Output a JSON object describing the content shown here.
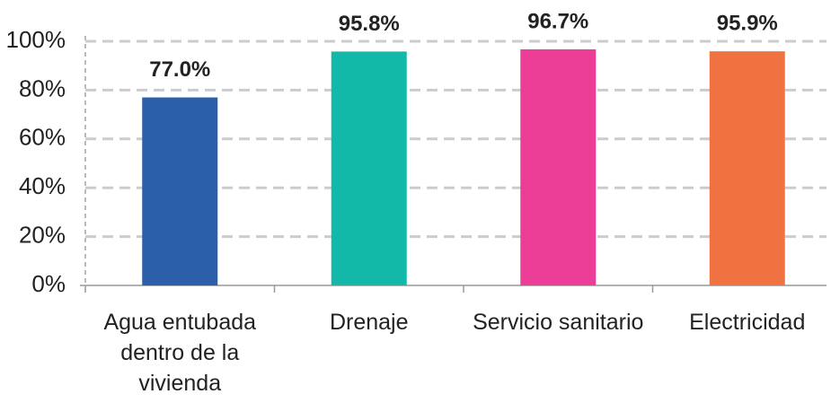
{
  "chart_data": {
    "type": "bar",
    "categories": [
      "Agua entubada dentro de la vivienda",
      "Drenaje",
      "Servicio sanitario",
      "Electricidad"
    ],
    "values": [
      77.0,
      95.8,
      96.7,
      95.9
    ],
    "value_labels": [
      "77.0%",
      "95.8%",
      "96.7%",
      "95.9%"
    ],
    "colors": [
      "#2b5fa9",
      "#13b9a8",
      "#ec3e97",
      "#f07241"
    ],
    "ylim": [
      0,
      100
    ],
    "yticks": [
      {
        "value": 0,
        "label": "0%"
      },
      {
        "value": 20,
        "label": "20%"
      },
      {
        "value": 40,
        "label": "40%"
      },
      {
        "value": 60,
        "label": "60%"
      },
      {
        "value": 80,
        "label": "80%"
      },
      {
        "value": 100,
        "label": "100%"
      }
    ],
    "grid": true
  }
}
